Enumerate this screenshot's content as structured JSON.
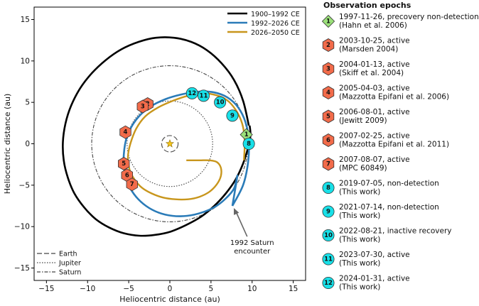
{
  "chart_data": {
    "type": "scatter",
    "xlabel": "Heliocentric distance (au)",
    "ylabel": "Heliocentric distance (au)",
    "xlim": [
      -16.5,
      16.5
    ],
    "ylim": [
      -16.5,
      16.5
    ],
    "xticks": [
      -15,
      -10,
      -5,
      0,
      5,
      10,
      15
    ],
    "yticks": [
      -15,
      -10,
      -5,
      0,
      5,
      10,
      15
    ],
    "grid": false,
    "colors": {
      "orbit_1900": "#000000",
      "orbit_1992": "#2a7bb8",
      "orbit_2026": "#c8961c",
      "active": "#f26b4a",
      "nondetection": "#18e0e8",
      "precovery": "#9be07a",
      "star": "#f5c518"
    },
    "orbit_legend": {
      "placement": "top-right",
      "entries": [
        {
          "label": "1900–1992 CE",
          "color": "#000000"
        },
        {
          "label": "1992–2026 CE",
          "color": "#2a7bb8"
        },
        {
          "label": "2026–2050 CE",
          "color": "#c8961c"
        }
      ]
    },
    "planet_legend": {
      "placement": "bottom-left",
      "entries": [
        {
          "label": "Earth",
          "style": "dashed",
          "radius_au": 1.0
        },
        {
          "label": "Jupiter",
          "style": "dotted",
          "radius_au": 5.2
        },
        {
          "label": "Saturn",
          "style": "dashdot",
          "radius_au": 9.5
        }
      ]
    },
    "annotation": {
      "text_line1": "1992 Saturn",
      "text_line2": "encounter",
      "xy_au": [
        7.6,
        -7.5
      ],
      "text_xy_au": [
        10.0,
        -12.4
      ]
    },
    "series": [
      {
        "label": "1900–1992 CE",
        "x": [
          9.6,
          8.9,
          7.8,
          6.3,
          4.5,
          2.6,
          0.5,
          -1.7,
          -3.8,
          -5.9,
          -7.8,
          -9.5,
          -10.9,
          -12.0,
          -12.7,
          -13.0,
          -12.9,
          -12.4,
          -11.6,
          -10.4,
          -9.0,
          -7.4,
          -5.6,
          -3.7,
          -1.8,
          0.1,
          2.0,
          3.8,
          5.4,
          6.8,
          8.0,
          8.9,
          9.5,
          9.8,
          9.7
        ],
        "y": [
          2.2,
          5.2,
          7.7,
          9.7,
          11.3,
          12.3,
          12.8,
          12.8,
          12.3,
          11.4,
          10.1,
          8.5,
          6.7,
          4.6,
          2.4,
          0.2,
          -2.0,
          -4.1,
          -6.0,
          -7.7,
          -9.1,
          -10.1,
          -10.8,
          -11.1,
          -11.0,
          -10.6,
          -9.8,
          -8.8,
          -7.5,
          -6.0,
          -4.3,
          -2.4,
          -0.5,
          1.0,
          2.2
        ]
      },
      {
        "label": "1992–2026 CE",
        "x": [
          7.6,
          8.9,
          9.5,
          9.6,
          9.2,
          8.3,
          7.0,
          5.4,
          3.6,
          1.6,
          -0.5,
          -2.5,
          -4.1,
          -5.2,
          -5.6,
          -5.5,
          -5.0,
          -4.1,
          -2.9,
          -1.4,
          0.3,
          2.1,
          3.9,
          5.5,
          6.8,
          7.8,
          8.2,
          7.6
        ],
        "y": [
          -7.5,
          -5.0,
          -2.3,
          0.4,
          2.6,
          4.4,
          5.6,
          6.2,
          6.3,
          6.0,
          5.4,
          4.4,
          2.9,
          0.9,
          -1.3,
          -3.3,
          -5.0,
          -6.4,
          -7.5,
          -8.3,
          -8.7,
          -8.7,
          -8.3,
          -7.6,
          -6.6,
          -5.4,
          -3.9,
          -7.5
        ]
      },
      {
        "label": "2026–2050 CE",
        "x": [
          9.0,
          9.1,
          8.8,
          8.0,
          6.9,
          5.5,
          3.9,
          2.2,
          0.4,
          -1.4,
          -3.0,
          -4.1,
          -4.8,
          -5.1,
          -4.9,
          -4.3,
          -3.4,
          -2.2,
          -0.8,
          0.7,
          2.2,
          3.6,
          4.8,
          5.7,
          6.2,
          6.2,
          5.7,
          4.8,
          3.6,
          2.0
        ],
        "y": [
          -2.0,
          0.3,
          2.4,
          4.1,
          5.3,
          5.9,
          6.1,
          5.8,
          5.2,
          4.4,
          3.3,
          1.8,
          0.0,
          -1.6,
          -3.1,
          -4.3,
          -5.3,
          -6.0,
          -6.5,
          -6.7,
          -6.7,
          -6.4,
          -5.8,
          -4.9,
          -3.9,
          -2.9,
          -2.2,
          -2.0,
          -2.0,
          -2.0
        ]
      }
    ],
    "observations": [
      {
        "id": "1",
        "x": 9.3,
        "y": 1.1,
        "kind": "precovery",
        "date_text": "1997-11-26, precovery non-detection",
        "ref": "(Hahn et al. 2006)"
      },
      {
        "id": "2",
        "x": -2.7,
        "y": 4.8,
        "kind": "active",
        "date_text": "2003-10-25, active",
        "ref": "(Marsden 2004)"
      },
      {
        "id": "3",
        "x": -3.3,
        "y": 4.5,
        "kind": "active",
        "date_text": "2004-01-13, active",
        "ref": "(Skiff et al. 2004)"
      },
      {
        "id": "4",
        "x": -5.4,
        "y": 1.4,
        "kind": "active",
        "date_text": "2005-04-03, active",
        "ref": "(Mazzotta Epifani et al. 2006)"
      },
      {
        "id": "5",
        "x": -5.6,
        "y": -2.4,
        "kind": "active",
        "date_text": "2006-08-01, active",
        "ref": "(Jewitt 2009)"
      },
      {
        "id": "6",
        "x": -5.2,
        "y": -3.8,
        "kind": "active",
        "date_text": "2007-02-25, active",
        "ref": "(Mazzotta Epifani et al. 2011)"
      },
      {
        "id": "7",
        "x": -4.6,
        "y": -4.9,
        "kind": "active",
        "date_text": "2007-08-07, active",
        "ref": "(MPC 60849)"
      },
      {
        "id": "8",
        "x": 9.6,
        "y": 0.0,
        "kind": "nondetection",
        "date_text": "2019-07-05, non-detection",
        "ref": "(This work)"
      },
      {
        "id": "9",
        "x": 7.6,
        "y": 3.4,
        "kind": "nondetection",
        "date_text": "2021-07-14, non-detection",
        "ref": "(This work)"
      },
      {
        "id": "10",
        "x": 6.1,
        "y": 5.0,
        "kind": "nondetection",
        "date_text": "2022-08-21, inactive recovery",
        "ref": "(This work)"
      },
      {
        "id": "11",
        "x": 4.1,
        "y": 5.8,
        "kind": "nondetection",
        "date_text": "2023-07-30, active",
        "ref": "(This work)"
      },
      {
        "id": "12",
        "x": 2.7,
        "y": 6.1,
        "kind": "nondetection",
        "date_text": "2024-01-31, active",
        "ref": "(This work)"
      }
    ],
    "epoch_legend_title": "Observation epochs"
  }
}
